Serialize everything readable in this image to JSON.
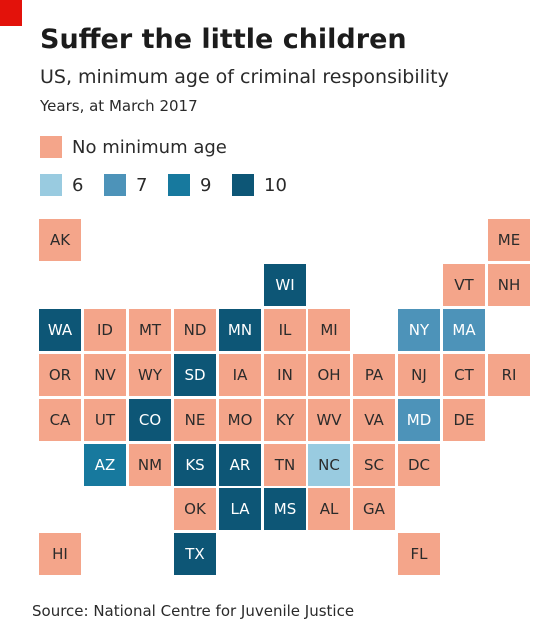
{
  "header": {
    "title": "Suffer the little children",
    "subtitle": "US, minimum age of criminal responsibility",
    "units": "Years, at March 2017"
  },
  "legend": [
    {
      "key": "none",
      "label": "No minimum age",
      "color": "#f4a58a"
    },
    {
      "key": "6",
      "label": "6",
      "color": "#99cbe0"
    },
    {
      "key": "7",
      "label": "7",
      "color": "#4d93b9"
    },
    {
      "key": "9",
      "label": "9",
      "color": "#17799e"
    },
    {
      "key": "10",
      "label": "10",
      "color": "#0d5676"
    }
  ],
  "chart_data": {
    "type": "heatmap",
    "title": "Suffer the little children",
    "subtitle": "US, minimum age of criminal responsibility",
    "units": "Years, at March 2017",
    "states": [
      {
        "abbr": "AK",
        "age": "none",
        "col": 0,
        "row": 0
      },
      {
        "abbr": "ME",
        "age": "none",
        "col": 10,
        "row": 0
      },
      {
        "abbr": "WI",
        "age": "10",
        "col": 5,
        "row": 1
      },
      {
        "abbr": "VT",
        "age": "none",
        "col": 9,
        "row": 1
      },
      {
        "abbr": "NH",
        "age": "none",
        "col": 10,
        "row": 1
      },
      {
        "abbr": "WA",
        "age": "10",
        "col": 0,
        "row": 2
      },
      {
        "abbr": "ID",
        "age": "none",
        "col": 1,
        "row": 2
      },
      {
        "abbr": "MT",
        "age": "none",
        "col": 2,
        "row": 2
      },
      {
        "abbr": "ND",
        "age": "none",
        "col": 3,
        "row": 2
      },
      {
        "abbr": "MN",
        "age": "10",
        "col": 4,
        "row": 2
      },
      {
        "abbr": "IL",
        "age": "none",
        "col": 5,
        "row": 2
      },
      {
        "abbr": "MI",
        "age": "none",
        "col": 6,
        "row": 2
      },
      {
        "abbr": "NY",
        "age": "7",
        "col": 8,
        "row": 2
      },
      {
        "abbr": "MA",
        "age": "7",
        "col": 9,
        "row": 2
      },
      {
        "abbr": "OR",
        "age": "none",
        "col": 0,
        "row": 3
      },
      {
        "abbr": "NV",
        "age": "none",
        "col": 1,
        "row": 3
      },
      {
        "abbr": "WY",
        "age": "none",
        "col": 2,
        "row": 3
      },
      {
        "abbr": "SD",
        "age": "10",
        "col": 3,
        "row": 3
      },
      {
        "abbr": "IA",
        "age": "none",
        "col": 4,
        "row": 3
      },
      {
        "abbr": "IN",
        "age": "none",
        "col": 5,
        "row": 3
      },
      {
        "abbr": "OH",
        "age": "none",
        "col": 6,
        "row": 3
      },
      {
        "abbr": "PA",
        "age": "none",
        "col": 7,
        "row": 3
      },
      {
        "abbr": "NJ",
        "age": "none",
        "col": 8,
        "row": 3
      },
      {
        "abbr": "CT",
        "age": "none",
        "col": 9,
        "row": 3
      },
      {
        "abbr": "RI",
        "age": "none",
        "col": 10,
        "row": 3
      },
      {
        "abbr": "CA",
        "age": "none",
        "col": 0,
        "row": 4
      },
      {
        "abbr": "UT",
        "age": "none",
        "col": 1,
        "row": 4
      },
      {
        "abbr": "CO",
        "age": "10",
        "col": 2,
        "row": 4
      },
      {
        "abbr": "NE",
        "age": "none",
        "col": 3,
        "row": 4
      },
      {
        "abbr": "MO",
        "age": "none",
        "col": 4,
        "row": 4
      },
      {
        "abbr": "KY",
        "age": "none",
        "col": 5,
        "row": 4
      },
      {
        "abbr": "WV",
        "age": "none",
        "col": 6,
        "row": 4
      },
      {
        "abbr": "VA",
        "age": "none",
        "col": 7,
        "row": 4
      },
      {
        "abbr": "MD",
        "age": "7",
        "col": 8,
        "row": 4
      },
      {
        "abbr": "DE",
        "age": "none",
        "col": 9,
        "row": 4
      },
      {
        "abbr": "AZ",
        "age": "9",
        "col": 1,
        "row": 5
      },
      {
        "abbr": "NM",
        "age": "none",
        "col": 2,
        "row": 5
      },
      {
        "abbr": "KS",
        "age": "10",
        "col": 3,
        "row": 5
      },
      {
        "abbr": "AR",
        "age": "10",
        "col": 4,
        "row": 5
      },
      {
        "abbr": "TN",
        "age": "none",
        "col": 5,
        "row": 5
      },
      {
        "abbr": "NC",
        "age": "6",
        "col": 6,
        "row": 5
      },
      {
        "abbr": "SC",
        "age": "none",
        "col": 7,
        "row": 5
      },
      {
        "abbr": "DC",
        "age": "none",
        "col": 8,
        "row": 5
      },
      {
        "abbr": "OK",
        "age": "none",
        "col": 3,
        "row": 6
      },
      {
        "abbr": "LA",
        "age": "10",
        "col": 4,
        "row": 6
      },
      {
        "abbr": "MS",
        "age": "10",
        "col": 5,
        "row": 6
      },
      {
        "abbr": "AL",
        "age": "none",
        "col": 6,
        "row": 6
      },
      {
        "abbr": "GA",
        "age": "none",
        "col": 7,
        "row": 6
      },
      {
        "abbr": "HI",
        "age": "none",
        "col": 0,
        "row": 7
      },
      {
        "abbr": "TX",
        "age": "10",
        "col": 3,
        "row": 7
      },
      {
        "abbr": "FL",
        "age": "none",
        "col": 8,
        "row": 7
      }
    ]
  },
  "footer": {
    "source": "Source: National Centre for Juvenile Justice"
  }
}
